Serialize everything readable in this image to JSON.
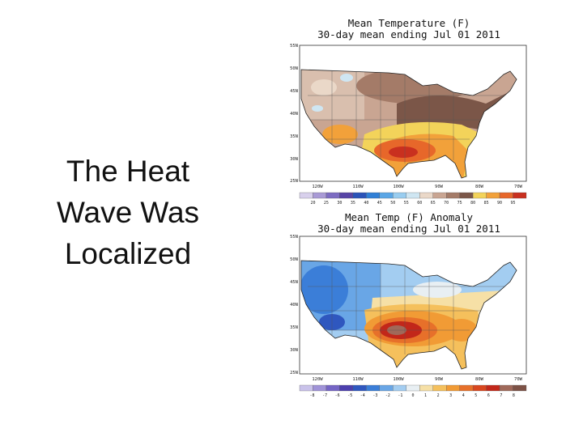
{
  "slide": {
    "title_lines": [
      "The Heat",
      "Wave Was",
      "Localized"
    ]
  },
  "maps": [
    {
      "title": "Mean Temperature (F)",
      "subtitle": "30-day mean ending Jul 01 2011",
      "lat_labels": [
        "55N",
        "50N",
        "45N",
        "40N",
        "35N",
        "30N",
        "25N"
      ],
      "lon_labels": [
        "120W",
        "110W",
        "100W",
        "90W",
        "80W",
        "70W"
      ],
      "legend_labels": [
        "20",
        "25",
        "30",
        "35",
        "40",
        "45",
        "50",
        "55",
        "60",
        "65",
        "70",
        "75",
        "80",
        "85",
        "90",
        "95"
      ],
      "legend_colors": [
        "#d8d0ec",
        "#a99ad6",
        "#7d6cc2",
        "#5744a6",
        "#2a53b8",
        "#2f7fd6",
        "#5aa6e6",
        "#99cdf0",
        "#cfe6f2",
        "#ead8c8",
        "#c9a592",
        "#a47b68",
        "#7b5648",
        "#f3d35a",
        "#f2a13a",
        "#e7672a",
        "#c9301f"
      ]
    },
    {
      "title": "Mean Temp (F) Anomaly",
      "subtitle": "30-day mean ending Jul 01 2011",
      "lat_labels": [
        "55N",
        "50N",
        "45N",
        "40N",
        "35N",
        "30N",
        "25N"
      ],
      "lon_labels": [
        "120W",
        "110W",
        "100W",
        "90W",
        "80W",
        "70W"
      ],
      "legend_labels": [
        "-8",
        "-7",
        "-6",
        "-5",
        "-4",
        "-3",
        "-2",
        "-1",
        "0",
        "1",
        "2",
        "3",
        "4",
        "5",
        "6",
        "7",
        "8"
      ],
      "legend_colors": [
        "#c9c2ea",
        "#a093d8",
        "#7565c5",
        "#4c3fae",
        "#2f57bf",
        "#3b7ed8",
        "#69a6e6",
        "#a3cdf1",
        "#e8eff3",
        "#f6e0a6",
        "#f5c05c",
        "#f19b35",
        "#e7702a",
        "#d9471f",
        "#c2271a",
        "#a0695a",
        "#7d5246"
      ]
    }
  ]
}
